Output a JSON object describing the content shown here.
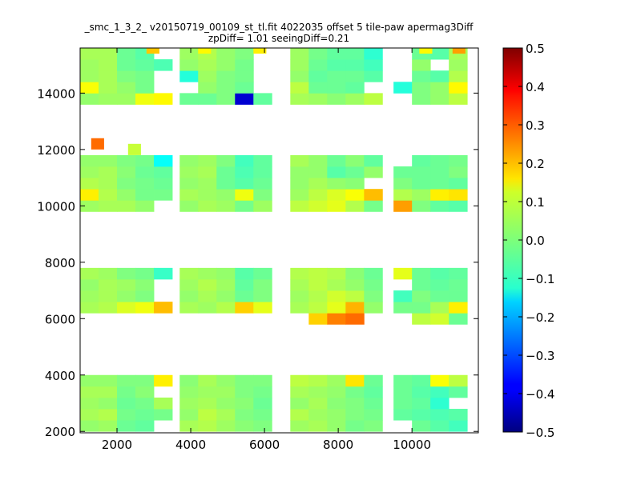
{
  "chart_data": {
    "type": "heatmap",
    "title_line1": "_smc_1_3_2_ v20150719_00109_st_tl.fit 4022035 offset 5 tile-paw apermag3Diff",
    "title_line2": "zpDiff= 1.01 seeingDiff=0.21",
    "xlabel": "",
    "ylabel": "",
    "xlim": [
      1000,
      11800
    ],
    "ylim": [
      1950,
      15600
    ],
    "x_ticks": [
      {
        "value": 2000,
        "label": "2000"
      },
      {
        "value": 4000,
        "label": "4000"
      },
      {
        "value": 6000,
        "label": "6000"
      },
      {
        "value": 8000,
        "label": "8000"
      },
      {
        "value": 10000,
        "label": "10000"
      }
    ],
    "y_ticks": [
      {
        "value": 2000,
        "label": "2000"
      },
      {
        "value": 4000,
        "label": "4000"
      },
      {
        "value": 6000,
        "label": "6000"
      },
      {
        "value": 8000,
        "label": "8000"
      },
      {
        "value": 10000,
        "label": "10000"
      },
      {
        "value": 12000,
        "label": "12000"
      },
      {
        "value": 14000,
        "label": "14000"
      }
    ],
    "colorbar": {
      "colormap": "jet",
      "vmin": -0.5,
      "vmax": 0.5,
      "ticks": [
        {
          "value": 0.5,
          "label": "0.5"
        },
        {
          "value": 0.4,
          "label": "0.4"
        },
        {
          "value": 0.3,
          "label": "0.3"
        },
        {
          "value": 0.2,
          "label": "0.2"
        },
        {
          "value": 0.1,
          "label": "0.1"
        },
        {
          "value": 0.0,
          "label": "0.0"
        },
        {
          "value": -0.1,
          "label": "−0.1"
        },
        {
          "value": -0.2,
          "label": "−0.2"
        },
        {
          "value": -0.3,
          "label": "−0.3"
        },
        {
          "value": -0.4,
          "label": "−0.4"
        },
        {
          "value": -0.5,
          "label": "−0.5"
        }
      ]
    },
    "grid": false,
    "cell_size": [
      500,
      400
    ],
    "columns_x": [
      1000,
      1500,
      2000,
      2500,
      3000,
      3700,
      4200,
      4700,
      5200,
      5700,
      6700,
      7200,
      7700,
      8200,
      8700,
      9500,
      10000,
      10500,
      11000
    ],
    "rows_y": [
      2000,
      2400,
      2800,
      3200,
      3600,
      5800,
      6200,
      6600,
      7000,
      7400,
      9800,
      10200,
      10600,
      11000,
      11400,
      13600,
      14000,
      14400,
      14800,
      15200
    ],
    "cells_note": "z values of the colored tiles; rows listed bottom to top, null = no data",
    "z": [
      [
        0.02,
        0.03,
        -0.02,
        -0.03,
        null,
        0.04,
        0.05,
        0.03,
        0.01,
        0.0,
        0.03,
        0.04,
        0.02,
        -0.01,
        0.0,
        null,
        -0.02,
        -0.04,
        -0.06
      ],
      [
        0.04,
        0.05,
        -0.01,
        -0.02,
        -0.01,
        0.02,
        0.06,
        0.04,
        0.0,
        -0.01,
        0.05,
        0.03,
        0.02,
        0.0,
        -0.01,
        -0.03,
        -0.04,
        -0.05,
        -0.04
      ],
      [
        0.03,
        0.02,
        -0.02,
        -0.01,
        0.04,
        0.03,
        0.04,
        0.02,
        0.01,
        -0.02,
        0.02,
        0.04,
        0.01,
        0.0,
        -0.02,
        -0.02,
        -0.03,
        -0.08,
        null
      ],
      [
        0.04,
        0.04,
        -0.01,
        0.01,
        null,
        0.02,
        0.03,
        0.03,
        0.0,
        -0.01,
        0.04,
        0.03,
        0.02,
        -0.01,
        -0.03,
        -0.02,
        -0.04,
        -0.06,
        -0.03
      ],
      [
        0.02,
        0.02,
        0.0,
        0.0,
        0.14,
        0.01,
        0.04,
        0.02,
        0.0,
        0.0,
        0.06,
        0.05,
        0.03,
        0.15,
        -0.02,
        -0.02,
        -0.03,
        0.12,
        0.06
      ],
      [
        null,
        null,
        null,
        null,
        null,
        null,
        null,
        null,
        null,
        null,
        null,
        0.17,
        0.25,
        0.27,
        null,
        null,
        0.06,
        0.08,
        -0.02
      ],
      [
        0.04,
        0.05,
        0.09,
        0.11,
        0.19,
        0.04,
        0.03,
        0.05,
        0.17,
        0.1,
        0.04,
        0.06,
        0.1,
        0.2,
        0.02,
        -0.01,
        -0.01,
        0.04,
        0.14
      ],
      [
        0.03,
        0.04,
        0.02,
        0.0,
        null,
        0.02,
        0.04,
        0.02,
        -0.02,
        0.0,
        0.03,
        0.05,
        0.08,
        0.06,
        0.0,
        -0.06,
        0.0,
        -0.02,
        -0.02
      ],
      [
        0.02,
        0.04,
        0.03,
        0.01,
        null,
        0.03,
        0.05,
        0.03,
        -0.03,
        0.0,
        0.04,
        0.06,
        0.04,
        0.02,
        -0.01,
        null,
        -0.02,
        -0.03,
        -0.02
      ],
      [
        0.04,
        0.03,
        0.0,
        -0.01,
        -0.07,
        0.04,
        0.03,
        0.02,
        -0.04,
        -0.02,
        0.05,
        0.06,
        0.05,
        0.01,
        -0.02,
        0.1,
        -0.02,
        -0.04,
        -0.03
      ],
      [
        0.03,
        0.04,
        0.04,
        0.02,
        null,
        0.02,
        0.04,
        0.03,
        -0.01,
        0.03,
        0.06,
        0.08,
        0.1,
        0.05,
        -0.01,
        0.22,
        0.0,
        -0.03,
        -0.04
      ],
      [
        0.14,
        0.05,
        0.02,
        -0.01,
        -0.01,
        0.04,
        0.03,
        0.02,
        0.11,
        0.0,
        0.03,
        0.06,
        0.09,
        0.12,
        0.19,
        0.05,
        0.03,
        0.14,
        0.15
      ],
      [
        0.05,
        0.04,
        0.0,
        -0.01,
        -0.02,
        0.02,
        0.03,
        -0.02,
        -0.04,
        -0.02,
        0.02,
        0.04,
        0.02,
        0.01,
        null,
        0.0,
        -0.02,
        -0.02,
        -0.03
      ],
      [
        0.03,
        0.04,
        0.01,
        -0.02,
        -0.03,
        0.03,
        0.04,
        -0.02,
        -0.05,
        -0.03,
        0.02,
        0.02,
        -0.04,
        -0.02,
        0.02,
        -0.02,
        -0.02,
        -0.02,
        0.0
      ],
      [
        0.02,
        0.02,
        0.0,
        -0.01,
        -0.12,
        0.02,
        0.03,
        0.0,
        -0.06,
        -0.03,
        0.04,
        0.02,
        -0.02,
        0.01,
        -0.03,
        null,
        -0.03,
        -0.02,
        -0.01
      ],
      [
        0.02,
        0.03,
        0.03,
        0.11,
        0.13,
        -0.02,
        -0.02,
        0.0,
        -0.42,
        -0.03,
        0.04,
        0.03,
        0.01,
        0.03,
        0.06,
        null,
        0.0,
        0.02,
        0.06
      ],
      [
        0.12,
        0.04,
        0.02,
        -0.01,
        null,
        null,
        0.02,
        0.0,
        -0.02,
        null,
        0.06,
        -0.02,
        -0.02,
        -0.03,
        null,
        -0.09,
        0.0,
        0.02,
        0.13
      ],
      [
        0.03,
        0.04,
        0.0,
        -0.01,
        null,
        -0.09,
        0.03,
        0.0,
        -0.01,
        null,
        0.02,
        -0.03,
        -0.02,
        -0.02,
        -0.04,
        null,
        -0.02,
        -0.04,
        0.05
      ],
      [
        0.03,
        0.04,
        -0.02,
        -0.03,
        -0.05,
        0.02,
        0.04,
        0.02,
        -0.01,
        null,
        0.03,
        -0.02,
        -0.04,
        -0.04,
        -0.06,
        null,
        0.02,
        null,
        0.03
      ],
      [
        0.04,
        0.04,
        -0.02,
        -0.04,
        null,
        0.03,
        0.05,
        0.02,
        0.0,
        null,
        0.03,
        -0.01,
        -0.03,
        -0.03,
        -0.08,
        null,
        -0.02,
        -0.04,
        0.04
      ]
    ],
    "extra_cells": [
      {
        "x": 1300,
        "y": 12000,
        "z": 0.27
      },
      {
        "x": 2300,
        "y": 11800,
        "z": 0.07
      },
      {
        "x": 2800,
        "y": 15400,
        "z": 0.18
      },
      {
        "x": 5700,
        "y": 15400,
        "z": 0.14
      },
      {
        "x": 4200,
        "y": 15400,
        "z": 0.13
      },
      {
        "x": 10200,
        "y": 15400,
        "z": 0.13
      },
      {
        "x": 11100,
        "y": 15400,
        "z": 0.22
      }
    ]
  }
}
